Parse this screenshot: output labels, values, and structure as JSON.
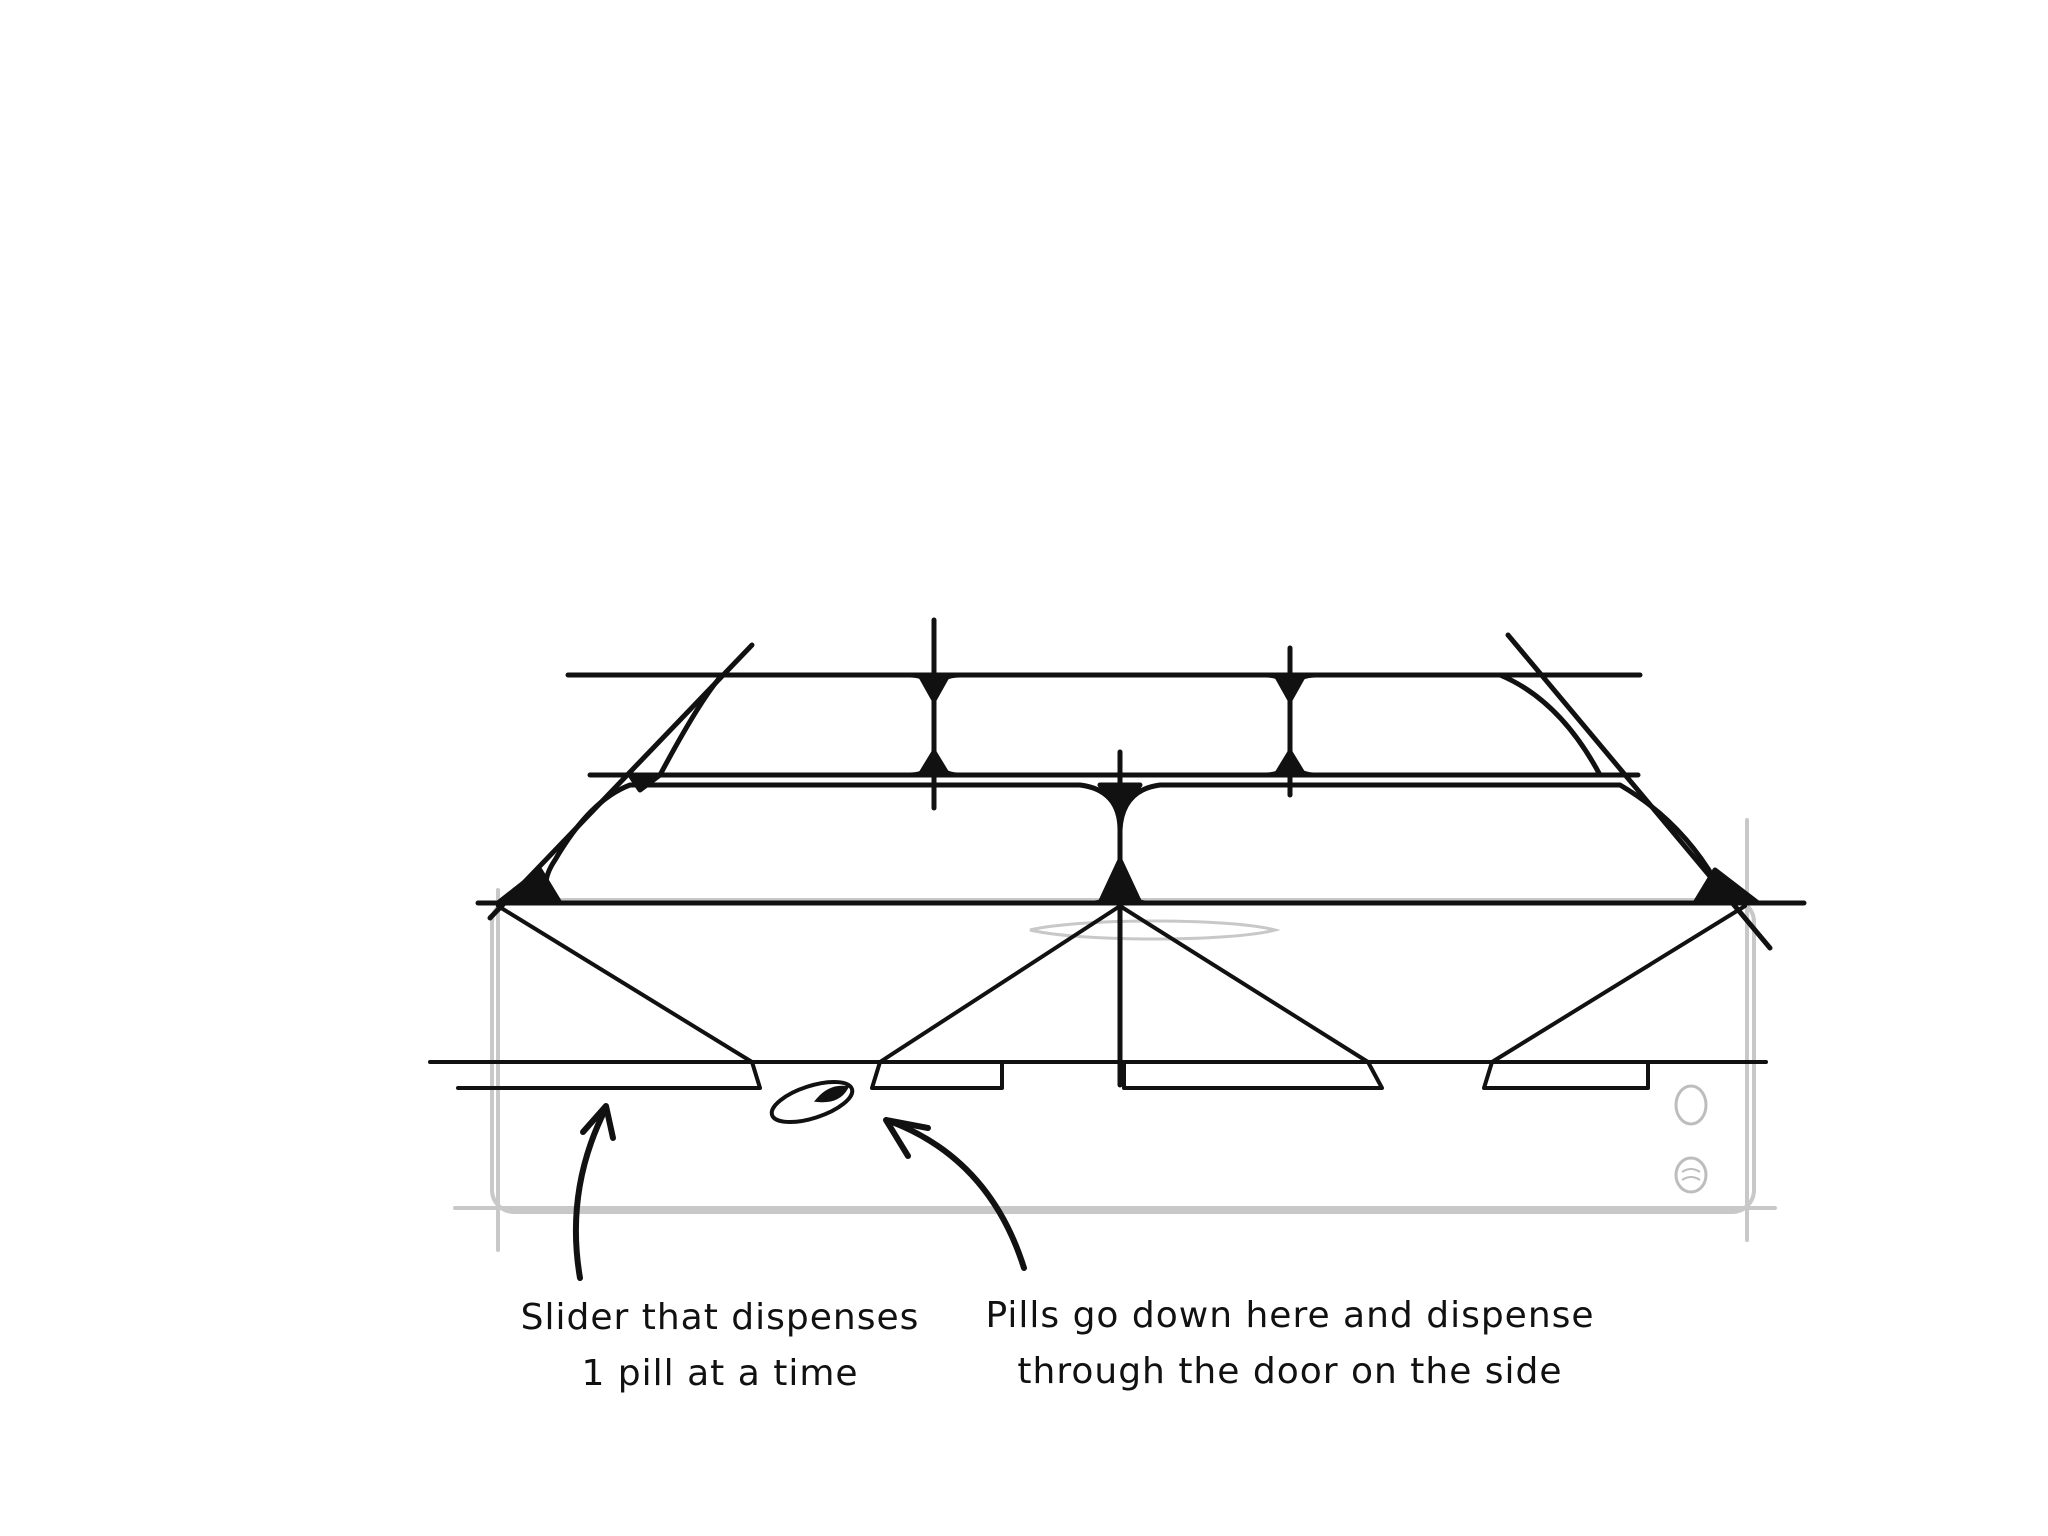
{
  "labels": {
    "slider": {
      "line1": "Slider that dispenses",
      "line2": "1 pill at a time"
    },
    "pills": {
      "line1": "Pills go down here and dispense",
      "line2": "through the door on the side"
    }
  },
  "colors": {
    "ink": "#111111",
    "faint": "#c8c8c8",
    "background": "#ffffff"
  }
}
